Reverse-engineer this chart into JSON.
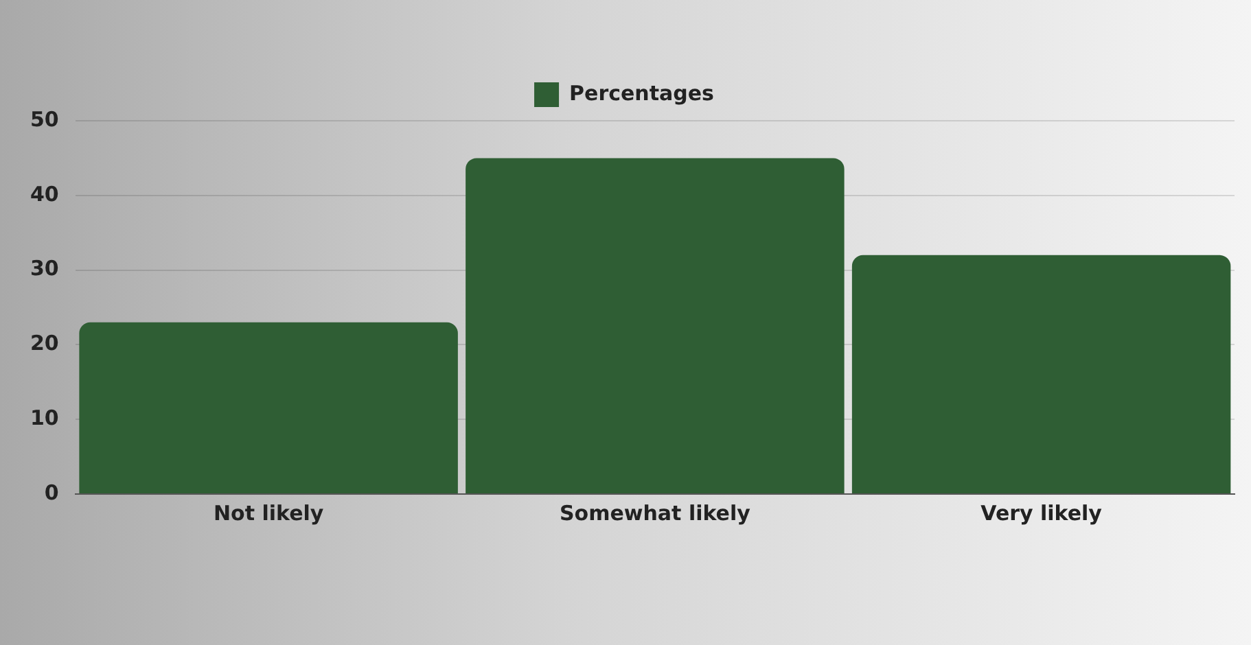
{
  "chart_data": {
    "type": "bar",
    "categories": [
      "Not likely",
      "Somewhat likely",
      "Very likely"
    ],
    "series": [
      {
        "name": "Percentages",
        "color": "#2f5e34",
        "values": [
          23,
          45,
          32
        ]
      }
    ],
    "ylim": [
      0,
      50
    ],
    "yticks": [
      0,
      10,
      20,
      30,
      40,
      50
    ],
    "grid": "y",
    "legend": "top"
  }
}
